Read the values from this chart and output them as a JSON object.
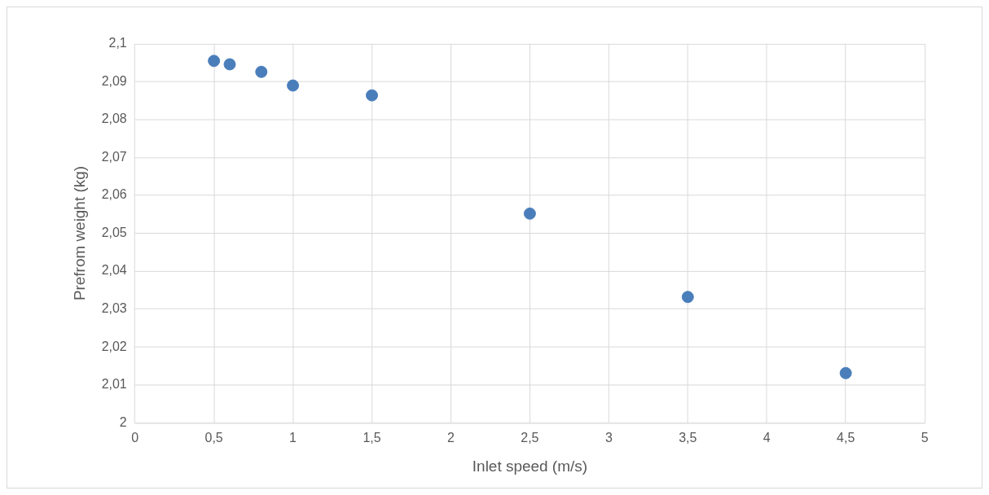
{
  "chart_data": {
    "type": "scatter",
    "xlabel": "Inlet speed (m/s)",
    "ylabel": "Prefrom weight (kg)",
    "x": [
      0.5,
      0.6,
      0.8,
      1,
      1.5,
      2.5,
      3.5,
      4.5
    ],
    "series": [
      {
        "color": "#4a7ebb",
        "values": [
          2.0955,
          2.0946,
          2.0926,
          2.089,
          2.0864,
          2.0552,
          2.0332,
          2.0131
        ]
      }
    ],
    "xlim": [
      0,
      5
    ],
    "ylim": [
      2,
      2.1
    ],
    "xticks": [
      0,
      {
        "value": 0.5,
        "label": "0,5"
      },
      1,
      {
        "value": 1.5,
        "label": "1,5"
      },
      2,
      {
        "value": 2.5,
        "label": "2,5"
      },
      3,
      {
        "value": 3.5,
        "label": "3,5"
      },
      4,
      {
        "value": 4.5,
        "label": "4,5"
      },
      5
    ],
    "yticks": [
      2,
      {
        "value": 2.01,
        "label": "2,01"
      },
      {
        "value": 2.02,
        "label": "2,02"
      },
      {
        "value": 2.03,
        "label": "2,03"
      },
      {
        "value": 2.04,
        "label": "2,04"
      },
      {
        "value": 2.05,
        "label": "2,05"
      },
      {
        "value": 2.06,
        "label": "2,06"
      },
      {
        "value": 2.07,
        "label": "2,07"
      },
      {
        "value": 2.08,
        "label": "2,08"
      },
      {
        "value": 2.09,
        "label": "2,09"
      },
      {
        "value": 2.1,
        "label": "2,1"
      }
    ],
    "grid": true,
    "marker": "circle",
    "legend": false
  }
}
